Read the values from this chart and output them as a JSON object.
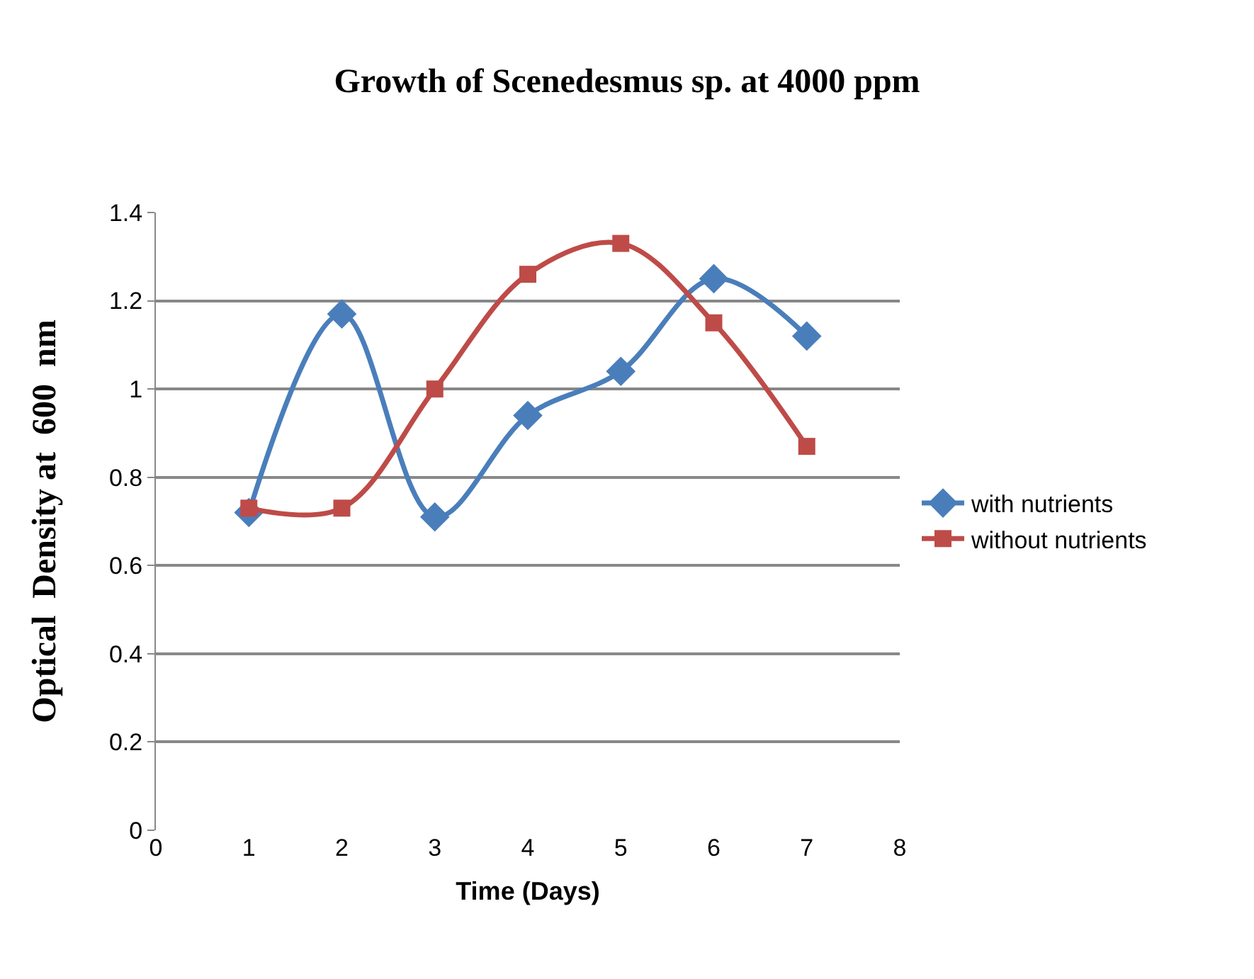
{
  "chart_data": {
    "type": "line",
    "title": "Growth of Scenedesmus sp. at 4000 ppm",
    "xlabel": "Time (Days)",
    "ylabel": "Optical  Density at  600  nm",
    "x": [
      1,
      2,
      3,
      4,
      5,
      6,
      7
    ],
    "series": [
      {
        "name": "with nutrients",
        "color": "#4a7ebb",
        "marker": "diamond",
        "values": [
          0.72,
          1.17,
          0.71,
          0.94,
          1.04,
          1.25,
          1.12
        ]
      },
      {
        "name": "without nutrients",
        "color": "#be4b48",
        "marker": "square",
        "values": [
          0.73,
          0.73,
          1.0,
          1.26,
          1.33,
          1.15,
          0.87
        ]
      }
    ],
    "xlim": [
      0,
      8
    ],
    "xticks": [
      0,
      1,
      2,
      3,
      4,
      5,
      6,
      7,
      8
    ],
    "ylim": [
      0,
      1.4
    ],
    "yticks": [
      {
        "value": 0,
        "label": "0"
      },
      {
        "value": 0.2,
        "label": "0.2"
      },
      {
        "value": 0.4,
        "label": "0.4"
      },
      {
        "value": 0.6,
        "label": "0.6"
      },
      {
        "value": 0.8,
        "label": "0.8"
      },
      {
        "value": 1,
        "label": "1"
      },
      {
        "value": 1.2,
        "label": "1.2"
      },
      {
        "value": 1.4,
        "label": "1.4"
      }
    ],
    "grid": "y",
    "legend": "right",
    "line_style": "solid"
  }
}
